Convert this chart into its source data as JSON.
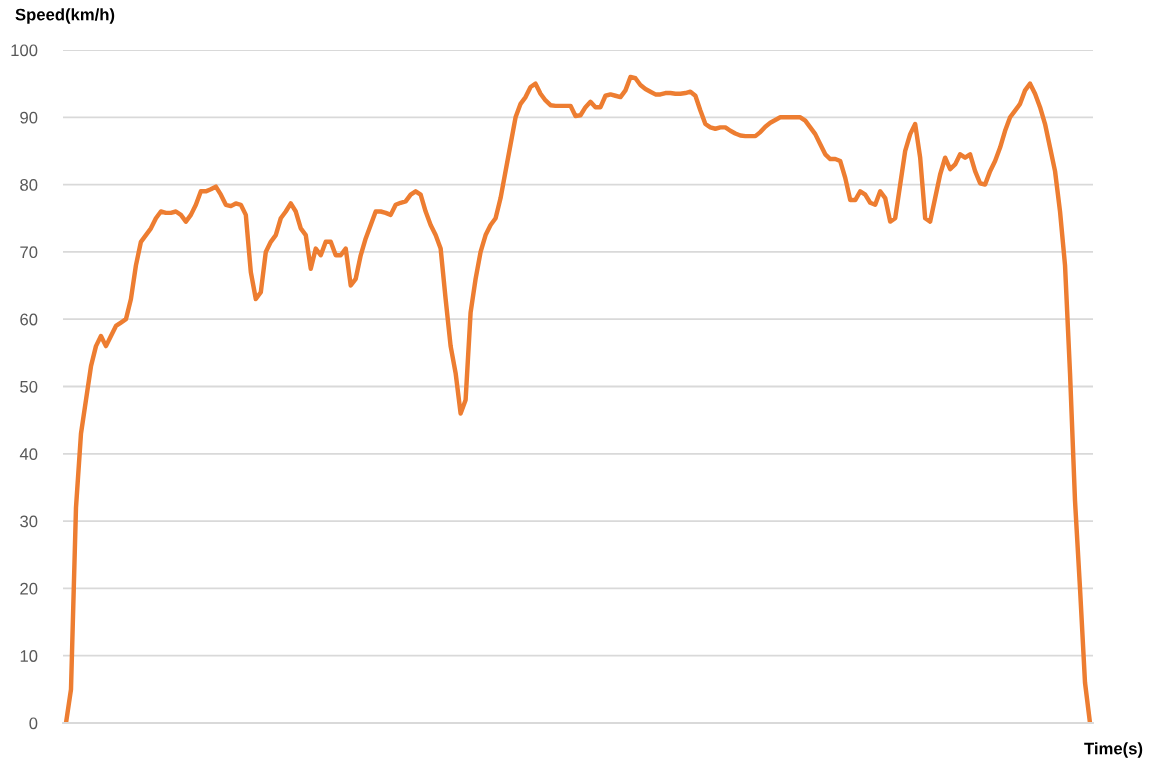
{
  "chart_data": {
    "type": "line",
    "xlabel": "Time(s)",
    "ylabel": "Speed(km/h)",
    "categories": [
      null,
      null,
      null,
      null,
      null,
      null,
      null,
      null,
      null,
      null,
      null,
      null,
      null,
      null,
      null,
      null,
      null,
      null,
      null,
      null,
      null,
      null,
      null,
      null,
      null,
      null,
      null,
      null,
      null,
      null,
      null,
      null,
      null,
      null,
      null,
      null,
      null,
      null,
      null,
      null,
      null,
      null,
      null,
      null,
      null,
      null,
      null,
      null,
      null,
      null,
      null,
      null,
      null,
      null,
      null,
      null,
      null,
      null,
      null,
      null,
      null,
      null,
      null,
      null,
      null,
      null,
      null,
      null,
      null,
      null,
      null,
      null,
      null,
      null,
      null,
      null,
      null,
      null,
      null,
      null,
      null,
      null,
      null,
      null,
      null,
      null,
      null,
      null,
      null,
      null,
      null,
      null,
      null,
      null,
      null,
      null,
      null,
      null,
      null,
      null,
      null,
      null,
      null,
      null,
      null,
      null,
      null,
      null,
      null,
      null,
      null,
      null,
      null,
      null,
      null,
      null,
      null,
      null,
      null,
      null,
      null,
      null,
      null,
      null,
      null,
      null,
      null,
      null,
      null,
      null,
      null,
      null,
      null,
      null,
      null,
      null,
      null,
      null,
      null,
      null,
      null,
      null,
      null,
      null,
      null,
      null,
      null,
      null,
      null,
      null,
      null,
      null,
      null,
      null,
      null,
      null,
      null,
      null,
      null,
      null,
      null,
      null,
      null,
      null,
      null,
      null,
      null,
      null,
      null,
      null,
      null,
      null,
      null,
      null,
      null,
      null,
      null,
      null,
      null,
      null,
      null,
      null,
      null,
      null,
      null,
      null,
      null,
      null,
      null,
      null,
      null,
      null,
      null,
      null,
      null,
      null,
      null,
      null,
      null,
      null,
      null,
      null,
      null,
      null,
      null,
      null
    ],
    "series": [
      {
        "color": "#ed7d31",
        "values": [
          0,
          5,
          32,
          43,
          48,
          53,
          56,
          57.5,
          56,
          57.5,
          59,
          59.5,
          60,
          63,
          68,
          71.5,
          72.5,
          73.5,
          75,
          76,
          75.8,
          75.8,
          76,
          75.5,
          74.5,
          75.5,
          77,
          79,
          79,
          79.3,
          79.7,
          78.5,
          77,
          76.8,
          77.2,
          77,
          75.5,
          67,
          63,
          64,
          70,
          71.5,
          72.5,
          75,
          76,
          77.2,
          76,
          73.5,
          72.5,
          67.5,
          70.5,
          69.5,
          71.5,
          71.5,
          69.5,
          69.5,
          70.5,
          65,
          66,
          69.5,
          72,
          74,
          76,
          76,
          75.8,
          75.5,
          77,
          77.3,
          77.5,
          78.5,
          79,
          78.5,
          76,
          74,
          72.5,
          70.5,
          63,
          56,
          52,
          46,
          48,
          61,
          66,
          70,
          72.5,
          74,
          75,
          78,
          82,
          86,
          90,
          92,
          93,
          94.5,
          95,
          93.5,
          92.5,
          91.8,
          91.7,
          91.7,
          91.7,
          91.7,
          90.2,
          90.3,
          91.5,
          92.3,
          91.5,
          91.5,
          93.2,
          93.4,
          93.2,
          93,
          94,
          96,
          95.8,
          94.8,
          94.2,
          93.8,
          93.4,
          93.4,
          93.6,
          93.6,
          93.5,
          93.5,
          93.6,
          93.8,
          93.2,
          91,
          89,
          88.5,
          88.3,
          88.5,
          88.5,
          88,
          87.6,
          87.3,
          87.2,
          87.2,
          87.2,
          87.8,
          88.6,
          89.2,
          89.6,
          90,
          90,
          90,
          90,
          90,
          89.5,
          88.5,
          87.5,
          86,
          84.5,
          83.8,
          83.8,
          83.5,
          81,
          77.7,
          77.7,
          79,
          78.5,
          77.3,
          77,
          79,
          78,
          74.5,
          75,
          80,
          85,
          87.5,
          89,
          84,
          75,
          74.5,
          78,
          81.5,
          84,
          82.3,
          83,
          84.5,
          84,
          84.5,
          82,
          80.2,
          80,
          82,
          83.5,
          85.5,
          88,
          90,
          91,
          92,
          94,
          95,
          93.5,
          91.5,
          89,
          85.5,
          82,
          76,
          68,
          52,
          33,
          20,
          6,
          0
        ]
      }
    ],
    "ylim": [
      0,
      100
    ],
    "yticks": [
      0,
      10,
      20,
      30,
      40,
      50,
      60,
      70,
      80,
      90,
      100
    ],
    "grid": "y",
    "legend": false
  }
}
